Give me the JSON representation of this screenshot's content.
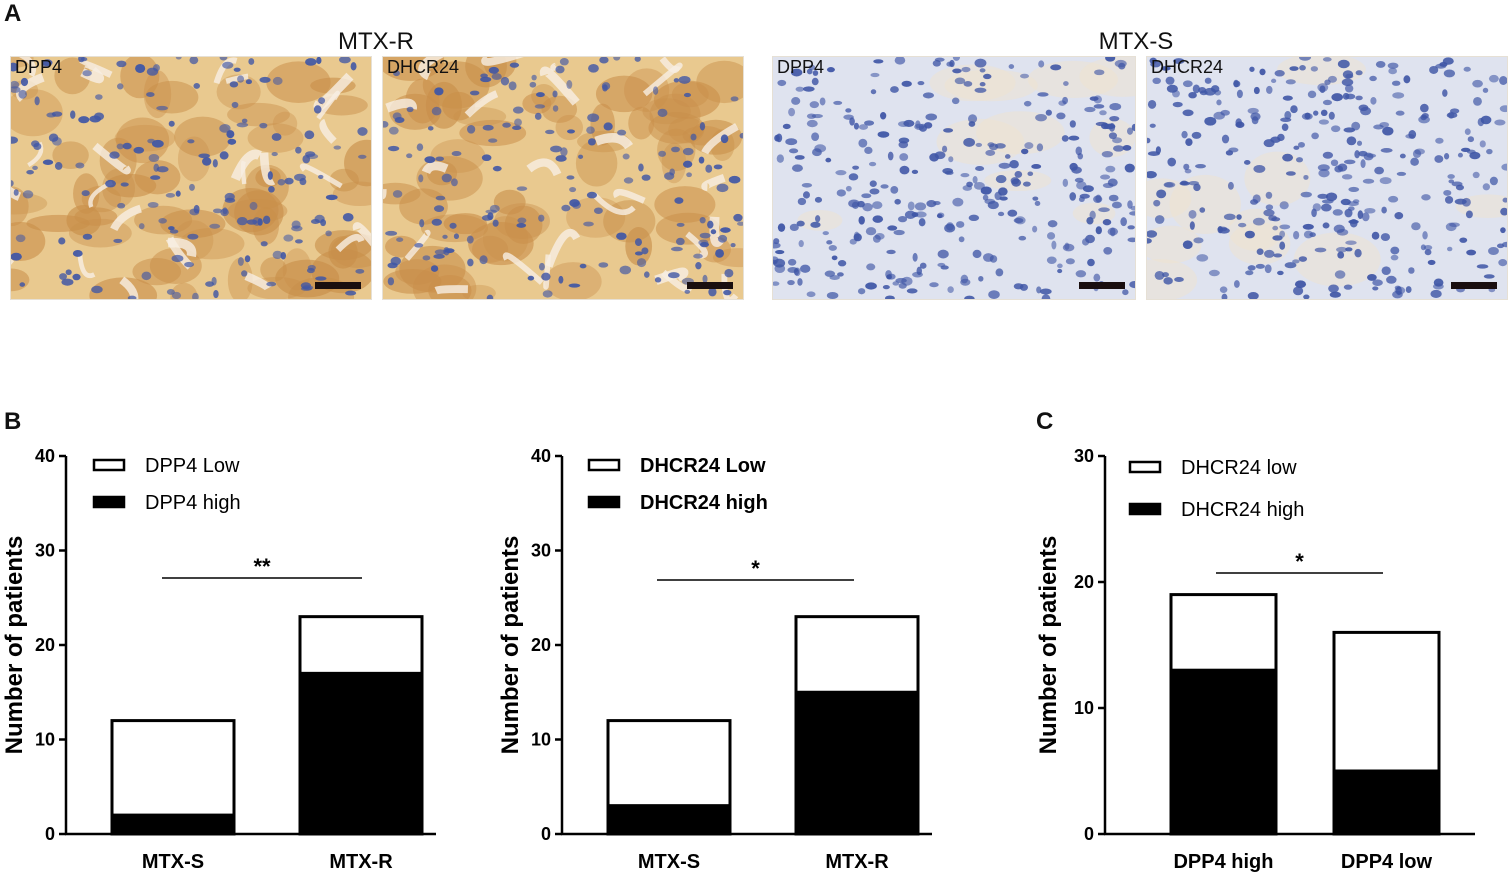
{
  "panel_letters": {
    "a": "A",
    "b": "B",
    "c": "C"
  },
  "micrographs": {
    "group_left_title": "MTX-R",
    "group_right_title": "MTX-S",
    "images": [
      {
        "label": "DPP4",
        "stain": "brown"
      },
      {
        "label": "DHCR24",
        "stain": "brown"
      },
      {
        "label": "DPP4",
        "stain": "blue"
      },
      {
        "label": "DHCR24",
        "stain": "blue"
      }
    ]
  },
  "colors": {
    "brown_stroma": "#e9c98f",
    "brown_cell": "#c98f4a",
    "blue_bg": "#dfe3ef",
    "nucleus": "#3f56a6",
    "bar_filled": "#000000",
    "bar_empty": "#ffffff"
  },
  "chart_data": [
    {
      "type": "bar",
      "stacked": true,
      "ylabel": "Number of patients",
      "categories": [
        "MTX-S",
        "MTX-R"
      ],
      "ylim": [
        0,
        40
      ],
      "yticks": [
        "0",
        "10",
        "20",
        "30",
        "40"
      ],
      "series": [
        {
          "name": "DPP4 high",
          "color": "#000000",
          "values": [
            2,
            17
          ]
        },
        {
          "name": "DPP4 Low",
          "color": "#ffffff",
          "values": [
            10,
            6
          ]
        }
      ],
      "legend_order": [
        "DPP4 Low",
        "DPP4 high"
      ],
      "significance": "**"
    },
    {
      "type": "bar",
      "stacked": true,
      "ylabel": "Number of patients",
      "categories": [
        "MTX-S",
        "MTX-R"
      ],
      "ylim": [
        0,
        40
      ],
      "yticks": [
        "0",
        "10",
        "20",
        "30",
        "40"
      ],
      "series": [
        {
          "name": "DHCR24 high",
          "color": "#000000",
          "values": [
            3,
            15
          ]
        },
        {
          "name": "DHCR24 Low",
          "color": "#ffffff",
          "values": [
            9,
            8
          ]
        }
      ],
      "legend_order": [
        "DHCR24 Low",
        "DHCR24 high"
      ],
      "significance": "*"
    },
    {
      "type": "bar",
      "stacked": true,
      "ylabel": "Number of patients",
      "categories": [
        "DPP4 high",
        "DPP4 low"
      ],
      "ylim": [
        0,
        30
      ],
      "yticks": [
        "0",
        "10",
        "20",
        "30"
      ],
      "series": [
        {
          "name": "DHCR24 high",
          "color": "#000000",
          "values": [
            13,
            5
          ]
        },
        {
          "name": "DHCR24 low",
          "color": "#ffffff",
          "values": [
            6,
            11
          ]
        }
      ],
      "legend_order": [
        "DHCR24 low",
        "DHCR24 high"
      ],
      "significance": "*"
    }
  ]
}
